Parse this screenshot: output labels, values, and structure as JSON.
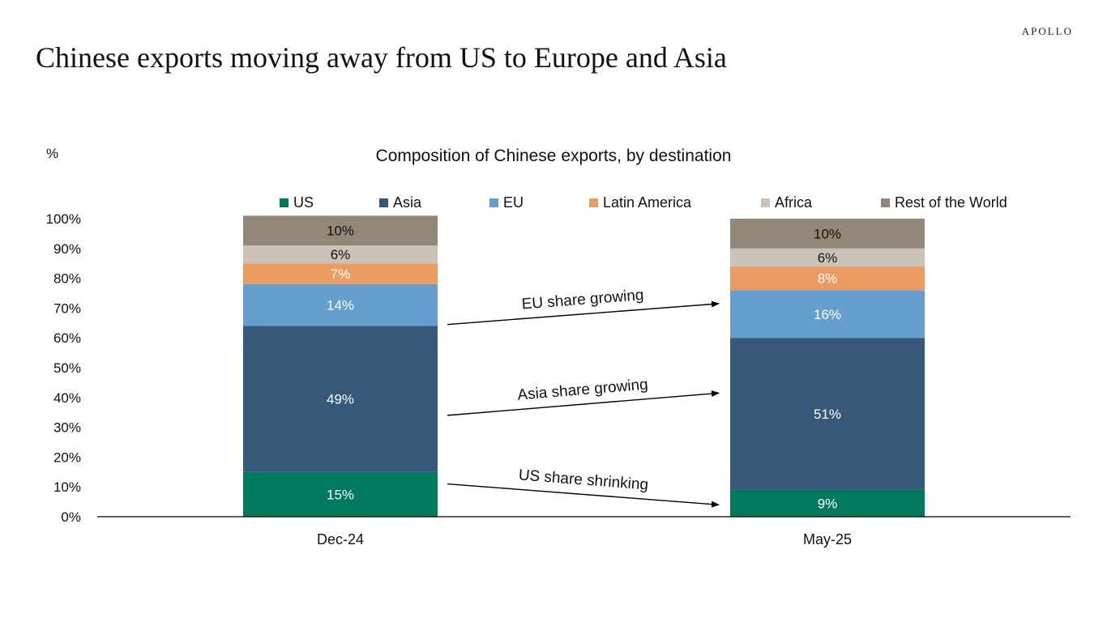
{
  "header": {
    "logo_text": "APOLLO",
    "headline": "Chinese exports moving away from US to Europe and Asia"
  },
  "colors": {
    "US": "#007a5e",
    "Asia": "#375878",
    "EU": "#659fd0",
    "Latin America": "#eb9c62",
    "Africa": "#cbc3b9",
    "Rest of the World": "#938777",
    "axis": "#000000"
  },
  "chart_data": {
    "type": "bar",
    "stacked": true,
    "title": "Composition of Chinese exports, by destination",
    "unit_label": "%",
    "xlabel": "",
    "ylabel": "",
    "ylim": [
      0,
      100
    ],
    "yticks": [
      "0%",
      "10%",
      "20%",
      "30%",
      "40%",
      "50%",
      "60%",
      "70%",
      "80%",
      "90%",
      "100%"
    ],
    "grid": false,
    "legend_position": "top",
    "categories": [
      "Dec-24",
      "May-25"
    ],
    "series": [
      {
        "name": "US",
        "values": [
          15,
          9
        ],
        "labels": [
          "15%",
          "9%"
        ],
        "label_color": "light"
      },
      {
        "name": "Asia",
        "values": [
          49,
          51
        ],
        "labels": [
          "49%",
          "51%"
        ],
        "label_color": "light"
      },
      {
        "name": "EU",
        "values": [
          14,
          16
        ],
        "labels": [
          "14%",
          "16%"
        ],
        "label_color": "light"
      },
      {
        "name": "Latin America",
        "values": [
          7,
          8
        ],
        "labels": [
          "7%",
          "8%"
        ],
        "label_color": "light"
      },
      {
        "name": "Africa",
        "values": [
          6,
          6
        ],
        "labels": [
          "6%",
          "6%"
        ],
        "label_color": "dark"
      },
      {
        "name": "Rest of the World",
        "values": [
          10,
          10
        ],
        "labels": [
          "10%",
          "10%"
        ],
        "label_color": "dark"
      }
    ],
    "annotations": [
      {
        "text": "EU share growing",
        "from": {
          "category": "Dec-24",
          "y": 64.5
        },
        "to": {
          "category": "May-25",
          "y": 71.5
        }
      },
      {
        "text": "Asia share growing",
        "from": {
          "category": "Dec-24",
          "y": 34
        },
        "to": {
          "category": "May-25",
          "y": 41.5
        }
      },
      {
        "text": "US share shrinking",
        "from": {
          "category": "Dec-24",
          "y": 11
        },
        "to": {
          "category": "May-25",
          "y": 4
        }
      }
    ]
  }
}
